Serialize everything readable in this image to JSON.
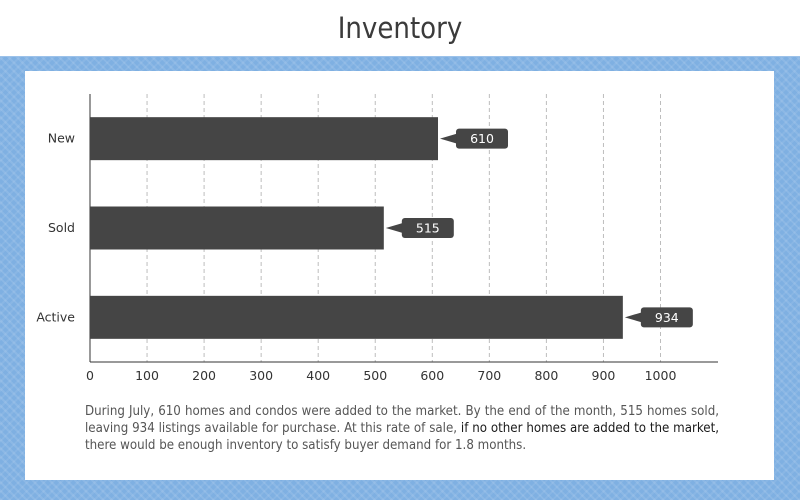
{
  "header": {
    "title": "Inventory"
  },
  "chart_data": {
    "type": "bar",
    "orientation": "horizontal",
    "categories": [
      "New",
      "Sold",
      "Active"
    ],
    "values": [
      610,
      515,
      934
    ],
    "data_labels": [
      "610",
      "515",
      "934"
    ],
    "xlim": [
      0,
      1100
    ],
    "xticks": [
      0,
      100,
      200,
      300,
      400,
      500,
      600,
      700,
      800,
      900,
      1000
    ],
    "grid": "vertical-dashed",
    "bar_color": "#454545"
  },
  "caption": {
    "part1": "During July, 610 homes and condos were added to the market. By the end of the month, 515 homes sold, leaving 934 listings available for purchase. At this rate of sale, ",
    "highlight": "if no other homes are added to the market,",
    "part2": " there would be enough inventory to satisfy buyer demand for 1.8 months."
  }
}
